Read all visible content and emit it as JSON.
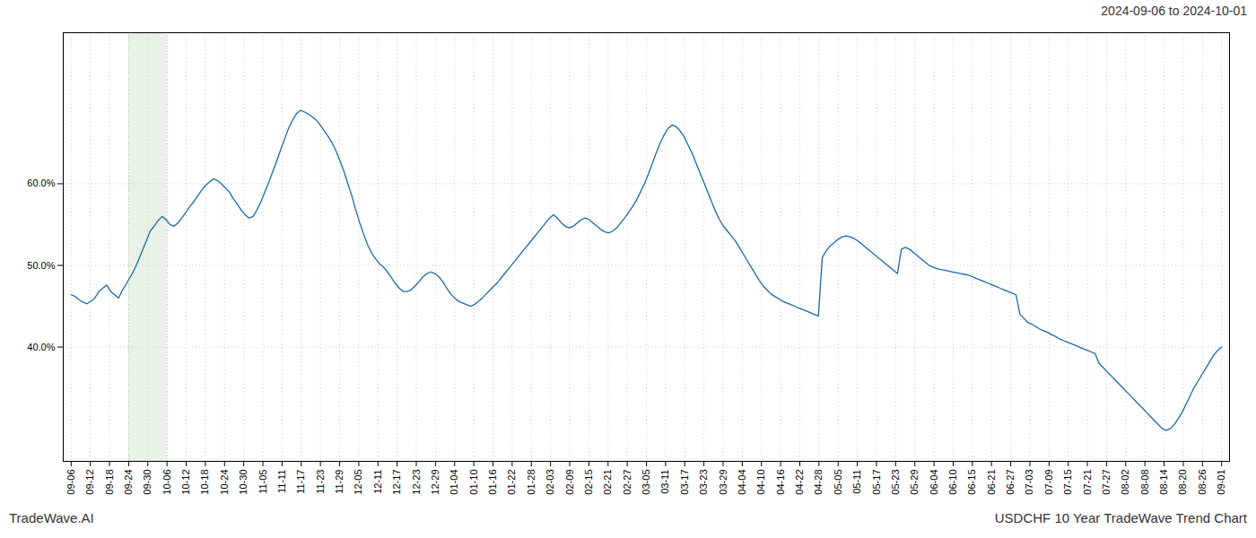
{
  "chart_data": {
    "type": "line",
    "title": "2024-09-06 to 2024-10-01",
    "annotations": [
      "TradeWave.AI",
      "USDCHF 10 Year TradeWave Trend Chart"
    ],
    "color": "#1a6aab",
    "grid": true,
    "xlim": [
      -2,
      293
    ],
    "xticks": [
      {
        "value": 0,
        "label": "09-06"
      },
      {
        "value": 4.85,
        "label": "09-12"
      },
      {
        "value": 9.7,
        "label": "09-18"
      },
      {
        "value": 14.55,
        "label": "09-24"
      },
      {
        "value": 19.4,
        "label": "09-30"
      },
      {
        "value": 24.25,
        "label": "10-06"
      },
      {
        "value": 29.1,
        "label": "10-12"
      },
      {
        "value": 33.95,
        "label": "10-18"
      },
      {
        "value": 38.8,
        "label": "10-24"
      },
      {
        "value": 43.65,
        "label": "10-30"
      },
      {
        "value": 48.5,
        "label": "11-05"
      },
      {
        "value": 53.35,
        "label": "11-11"
      },
      {
        "value": 58.2,
        "label": "11-17"
      },
      {
        "value": 63.05,
        "label": "11-23"
      },
      {
        "value": 67.9,
        "label": "11-29"
      },
      {
        "value": 72.75,
        "label": "12-05"
      },
      {
        "value": 77.6,
        "label": "12-11"
      },
      {
        "value": 82.45,
        "label": "12-17"
      },
      {
        "value": 87.3,
        "label": "12-23"
      },
      {
        "value": 92.15,
        "label": "12-29"
      },
      {
        "value": 97,
        "label": "01-04"
      },
      {
        "value": 101.85,
        "label": "01-10"
      },
      {
        "value": 106.7,
        "label": "01-16"
      },
      {
        "value": 111.55,
        "label": "01-22"
      },
      {
        "value": 116.4,
        "label": "01-28"
      },
      {
        "value": 121.25,
        "label": "02-03"
      },
      {
        "value": 126.1,
        "label": "02-09"
      },
      {
        "value": 130.95,
        "label": "02-15"
      },
      {
        "value": 135.8,
        "label": "02-21"
      },
      {
        "value": 140.65,
        "label": "02-27"
      },
      {
        "value": 145.5,
        "label": "03-05"
      },
      {
        "value": 150.35,
        "label": "03-11"
      },
      {
        "value": 155.2,
        "label": "03-17"
      },
      {
        "value": 160.05,
        "label": "03-23"
      },
      {
        "value": 164.9,
        "label": "03-29"
      },
      {
        "value": 169.75,
        "label": "04-04"
      },
      {
        "value": 174.6,
        "label": "04-10"
      },
      {
        "value": 179.45,
        "label": "04-16"
      },
      {
        "value": 184.3,
        "label": "04-22"
      },
      {
        "value": 189.15,
        "label": "04-28"
      },
      {
        "value": 194,
        "label": "05-05"
      },
      {
        "value": 198.85,
        "label": "05-11"
      },
      {
        "value": 203.7,
        "label": "05-17"
      },
      {
        "value": 208.55,
        "label": "05-23"
      },
      {
        "value": 213.4,
        "label": "05-29"
      },
      {
        "value": 218.25,
        "label": "06-04"
      },
      {
        "value": 223.1,
        "label": "06-10"
      },
      {
        "value": 227.95,
        "label": "06-15"
      },
      {
        "value": 232.8,
        "label": "06-21"
      },
      {
        "value": 237.65,
        "label": "06-27"
      },
      {
        "value": 242.5,
        "label": "07-03"
      },
      {
        "value": 247.35,
        "label": "07-09"
      },
      {
        "value": 252.2,
        "label": "07-15"
      },
      {
        "value": 257.05,
        "label": "07-21"
      },
      {
        "value": 261.9,
        "label": "07-27"
      },
      {
        "value": 266.75,
        "label": "08-02"
      },
      {
        "value": 271.6,
        "label": "08-08"
      },
      {
        "value": 276.45,
        "label": "08-14"
      },
      {
        "value": 281.3,
        "label": "08-20"
      },
      {
        "value": 286.15,
        "label": "08-26"
      },
      {
        "value": 291,
        "label": "09-01"
      }
    ],
    "shaded_span": [
      14.55,
      24.25
    ],
    "ylim": [
      0.26,
      0.785
    ],
    "yticks": [
      {
        "value": 0.4,
        "label": "40.0%"
      },
      {
        "value": 0.5,
        "label": "50.0%"
      },
      {
        "value": 0.6,
        "label": "60.0%"
      }
    ],
    "x": [
      0,
      1,
      2,
      3,
      4,
      5,
      6,
      7,
      8,
      9,
      10,
      11,
      12,
      13,
      14,
      15,
      16,
      17,
      18,
      19,
      20,
      21,
      22,
      23,
      24,
      25,
      26,
      27,
      28,
      29,
      30,
      31,
      32,
      33,
      34,
      35,
      36,
      37,
      38,
      39,
      40,
      41,
      42,
      43,
      44,
      45,
      46,
      47,
      48,
      49,
      50,
      51,
      52,
      53,
      54,
      55,
      56,
      57,
      58,
      59,
      60,
      61,
      62,
      63,
      64,
      65,
      66,
      67,
      68,
      69,
      70,
      71,
      72,
      73,
      74,
      75,
      76,
      77,
      78,
      79,
      80,
      81,
      82,
      83,
      84,
      85,
      86,
      87,
      88,
      89,
      90,
      91,
      92,
      93,
      94,
      95,
      96,
      97,
      98,
      99,
      100,
      101,
      102,
      103,
      104,
      105,
      106,
      107,
      108,
      109,
      110,
      111,
      112,
      113,
      114,
      115,
      116,
      117,
      118,
      119,
      120,
      121,
      122,
      123,
      124,
      125,
      126,
      127,
      128,
      129,
      130,
      131,
      132,
      133,
      134,
      135,
      136,
      137,
      138,
      139,
      140,
      141,
      142,
      143,
      144,
      145,
      146,
      147,
      148,
      149,
      150,
      151,
      152,
      153,
      154,
      155,
      156,
      157,
      158,
      159,
      160,
      161,
      162,
      163,
      164,
      165,
      166,
      167,
      168,
      169,
      170,
      171,
      172,
      173,
      174,
      175,
      176,
      177,
      178,
      179,
      180,
      181,
      182,
      183,
      184,
      185,
      186,
      187,
      188,
      189,
      190,
      191,
      192,
      193,
      194,
      195,
      196,
      197,
      198,
      199,
      200,
      201,
      202,
      203,
      204,
      205,
      206,
      207,
      208,
      209,
      210,
      211,
      212,
      213,
      214,
      215,
      216,
      217,
      218,
      219,
      220,
      221,
      222,
      223,
      224,
      225,
      226,
      227,
      228,
      229,
      230,
      231,
      232,
      233,
      234,
      235,
      236,
      237,
      238,
      239,
      240,
      241,
      242,
      243,
      244,
      245,
      246,
      247,
      248,
      249,
      250,
      251,
      252,
      253,
      254,
      255,
      256,
      257,
      258,
      259,
      260,
      261,
      262,
      263,
      264,
      265,
      266,
      267,
      268,
      269,
      270,
      271,
      272,
      273,
      274,
      275,
      276,
      277,
      278,
      279,
      280,
      281,
      282,
      283,
      284,
      285,
      286,
      287,
      288,
      289,
      290,
      291
    ],
    "values": [
      0.464,
      0.462,
      0.458,
      0.455,
      0.453,
      0.456,
      0.46,
      0.468,
      0.472,
      0.476,
      0.468,
      0.464,
      0.46,
      0.47,
      0.478,
      0.486,
      0.495,
      0.506,
      0.518,
      0.53,
      0.542,
      0.548,
      0.555,
      0.56,
      0.556,
      0.55,
      0.548,
      0.552,
      0.558,
      0.565,
      0.572,
      0.578,
      0.585,
      0.592,
      0.598,
      0.602,
      0.606,
      0.604,
      0.6,
      0.595,
      0.59,
      0.582,
      0.575,
      0.568,
      0.562,
      0.558,
      0.56,
      0.568,
      0.578,
      0.59,
      0.602,
      0.615,
      0.628,
      0.642,
      0.655,
      0.668,
      0.678,
      0.686,
      0.69,
      0.688,
      0.685,
      0.682,
      0.678,
      0.672,
      0.665,
      0.658,
      0.65,
      0.64,
      0.628,
      0.615,
      0.6,
      0.585,
      0.568,
      0.552,
      0.538,
      0.525,
      0.515,
      0.508,
      0.502,
      0.498,
      0.492,
      0.485,
      0.478,
      0.472,
      0.468,
      0.468,
      0.47,
      0.475,
      0.48,
      0.486,
      0.49,
      0.492,
      0.49,
      0.486,
      0.48,
      0.472,
      0.465,
      0.46,
      0.456,
      0.454,
      0.452,
      0.45,
      0.452,
      0.456,
      0.46,
      0.465,
      0.47,
      0.475,
      0.48,
      0.486,
      0.492,
      0.498,
      0.504,
      0.51,
      0.516,
      0.522,
      0.528,
      0.534,
      0.54,
      0.546,
      0.552,
      0.558,
      0.562,
      0.558,
      0.552,
      0.548,
      0.546,
      0.548,
      0.552,
      0.556,
      0.558,
      0.556,
      0.552,
      0.548,
      0.544,
      0.541,
      0.54,
      0.542,
      0.546,
      0.552,
      0.558,
      0.565,
      0.572,
      0.58,
      0.59,
      0.6,
      0.612,
      0.625,
      0.638,
      0.65,
      0.66,
      0.668,
      0.672,
      0.67,
      0.665,
      0.658,
      0.648,
      0.638,
      0.626,
      0.614,
      0.602,
      0.59,
      0.578,
      0.566,
      0.556,
      0.548,
      0.542,
      0.536,
      0.53,
      0.522,
      0.514,
      0.506,
      0.498,
      0.49,
      0.482,
      0.475,
      0.47,
      0.465,
      0.462,
      0.459,
      0.456,
      0.454,
      0.452,
      0.45,
      0.448,
      0.446,
      0.444,
      0.442,
      0.44,
      0.438,
      0.51,
      0.518,
      0.524,
      0.528,
      0.532,
      0.535,
      0.536,
      0.535,
      0.533,
      0.53,
      0.526,
      0.522,
      0.518,
      0.514,
      0.51,
      0.506,
      0.502,
      0.498,
      0.494,
      0.49,
      0.52,
      0.522,
      0.52,
      0.516,
      0.512,
      0.508,
      0.504,
      0.5,
      0.498,
      0.496,
      0.495,
      0.494,
      0.493,
      0.492,
      0.491,
      0.49,
      0.489,
      0.488,
      0.486,
      0.484,
      0.482,
      0.48,
      0.478,
      0.476,
      0.474,
      0.472,
      0.47,
      0.468,
      0.466,
      0.464,
      0.44,
      0.435,
      0.43,
      0.428,
      0.425,
      0.422,
      0.42,
      0.418,
      0.415,
      0.413,
      0.41,
      0.408,
      0.406,
      0.404,
      0.402,
      0.4,
      0.398,
      0.396,
      0.394,
      0.392,
      0.38,
      0.375,
      0.37,
      0.365,
      0.36,
      0.355,
      0.35,
      0.345,
      0.34,
      0.335,
      0.33,
      0.325,
      0.32,
      0.315,
      0.31,
      0.305,
      0.3,
      0.298,
      0.3,
      0.305,
      0.312,
      0.32,
      0.33,
      0.34,
      0.35,
      0.358,
      0.366,
      0.374,
      0.382,
      0.39,
      0.396,
      0.4
    ]
  }
}
